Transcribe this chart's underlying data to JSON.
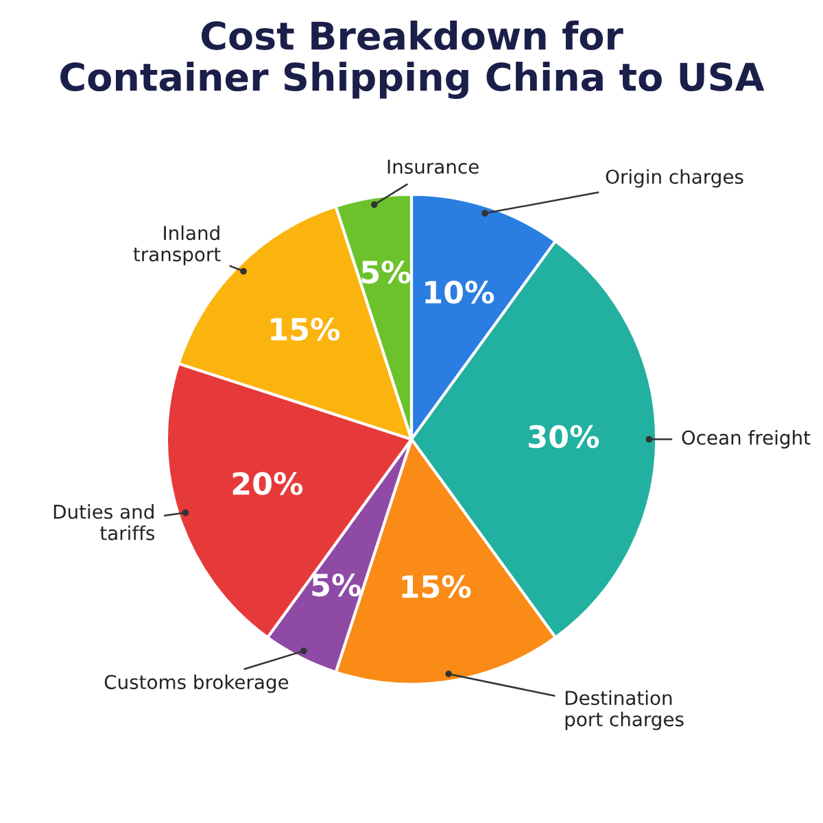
{
  "chart_data": {
    "type": "pie",
    "title": "Cost Breakdown for\nContainer Shipping China to USA",
    "categories": [
      "Origin charges",
      "Ocean freight",
      "Destination\nport charges",
      "Customs brokerage",
      "Duties and\ntariffs",
      "Inland\ntransport",
      "Insurance"
    ],
    "values": [
      10,
      30,
      15,
      5,
      20,
      15,
      5
    ],
    "value_labels": [
      "10%",
      "30%",
      "15%",
      "5%",
      "20%",
      "15%",
      "5%"
    ],
    "colors": [
      "#2a7de1",
      "#22b0a0",
      "#f98b16",
      "#8e4aa5",
      "#e63a3a",
      "#fbb30e",
      "#6cc22d"
    ]
  }
}
